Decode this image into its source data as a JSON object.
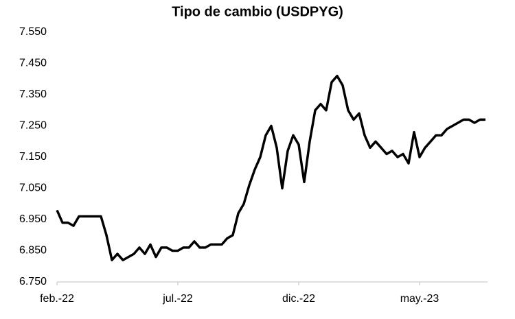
{
  "chart_data": {
    "type": "line",
    "title": "Tipo de cambio (USDPYG)",
    "categories": [
      "feb.-22",
      null,
      null,
      null,
      null,
      null,
      null,
      null,
      null,
      null,
      null,
      null,
      null,
      null,
      null,
      null,
      null,
      null,
      null,
      null,
      null,
      null,
      "jul.-22",
      null,
      null,
      null,
      null,
      null,
      null,
      null,
      null,
      null,
      null,
      null,
      null,
      null,
      null,
      null,
      null,
      null,
      null,
      null,
      null,
      null,
      "dic.-22",
      null,
      null,
      null,
      null,
      null,
      null,
      null,
      null,
      null,
      null,
      null,
      null,
      null,
      null,
      null,
      null,
      null,
      null,
      null,
      null,
      null,
      "may.-23",
      null,
      null,
      null,
      null,
      null,
      null,
      null,
      null,
      null,
      null,
      null,
      null
    ],
    "values": [
      6980,
      6940,
      6940,
      6930,
      6960,
      6960,
      6960,
      6960,
      6960,
      6900,
      6820,
      6840,
      6820,
      6830,
      6840,
      6860,
      6840,
      6870,
      6830,
      6860,
      6860,
      6850,
      6850,
      6860,
      6860,
      6880,
      6860,
      6860,
      6870,
      6870,
      6870,
      6890,
      6900,
      6970,
      7000,
      7060,
      7110,
      7150,
      7220,
      7250,
      7180,
      7050,
      7170,
      7220,
      7190,
      7070,
      7200,
      7300,
      7320,
      7300,
      7390,
      7410,
      7380,
      7300,
      7270,
      7290,
      7220,
      7180,
      7200,
      7180,
      7160,
      7170,
      7150,
      7160,
      7130,
      7230,
      7150,
      7180,
      7200,
      7220,
      7220,
      7240,
      7250,
      7260,
      7270,
      7270,
      7260,
      7270,
      7270
    ],
    "color": "#000000",
    "ylim": [
      6750,
      7550
    ],
    "yticks": [
      {
        "value": 6750,
        "label": "6.750"
      },
      {
        "value": 6850,
        "label": "6.850"
      },
      {
        "value": 6950,
        "label": "6.950"
      },
      {
        "value": 7050,
        "label": "7.050"
      },
      {
        "value": 7150,
        "label": "7.150"
      },
      {
        "value": 7250,
        "label": "7.250"
      },
      {
        "value": 7350,
        "label": "7.350"
      },
      {
        "value": 7450,
        "label": "7.450"
      },
      {
        "value": 7550,
        "label": "7.550"
      }
    ],
    "grid": false
  }
}
